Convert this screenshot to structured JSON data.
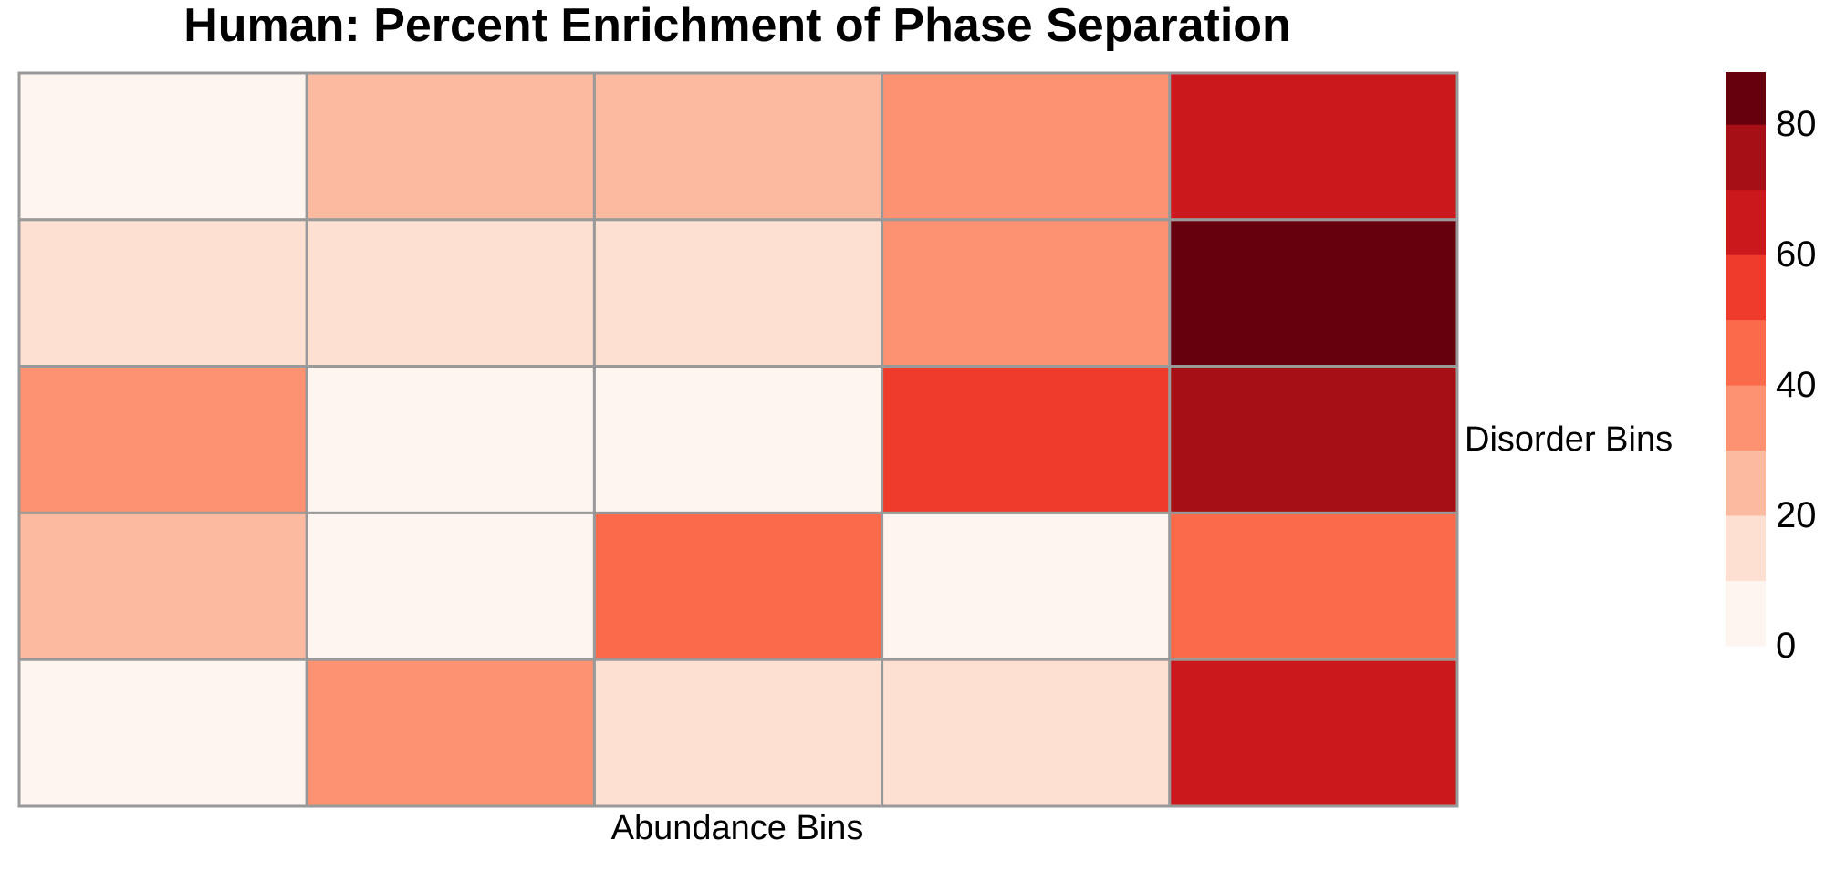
{
  "chart_data": {
    "type": "heatmap",
    "title": "Human: Percent Enrichment of Phase Separation",
    "xlabel": "Abundance Bins",
    "ylabel": "Disorder Bins",
    "rows": 5,
    "cols": 5,
    "values": [
      [
        5,
        25,
        25,
        35,
        65
      ],
      [
        15,
        15,
        15,
        35,
        85
      ],
      [
        35,
        5,
        5,
        55,
        75
      ],
      [
        25,
        5,
        45,
        5,
        45
      ],
      [
        5,
        35,
        15,
        15,
        65
      ]
    ],
    "legend": {
      "min": 0,
      "max": 88,
      "ticks": [
        0,
        20,
        40,
        60,
        80
      ],
      "breaks": [
        0,
        10,
        20,
        30,
        40,
        50,
        60,
        70,
        80,
        88
      ],
      "colors": [
        "#fff5f0",
        "#fee0d2",
        "#fcbba1",
        "#fc9272",
        "#fb6a4a",
        "#ef3b2c",
        "#cb181d",
        "#a50f15",
        "#67000d"
      ]
    },
    "grid": true,
    "cell_border_color": "#999999"
  }
}
